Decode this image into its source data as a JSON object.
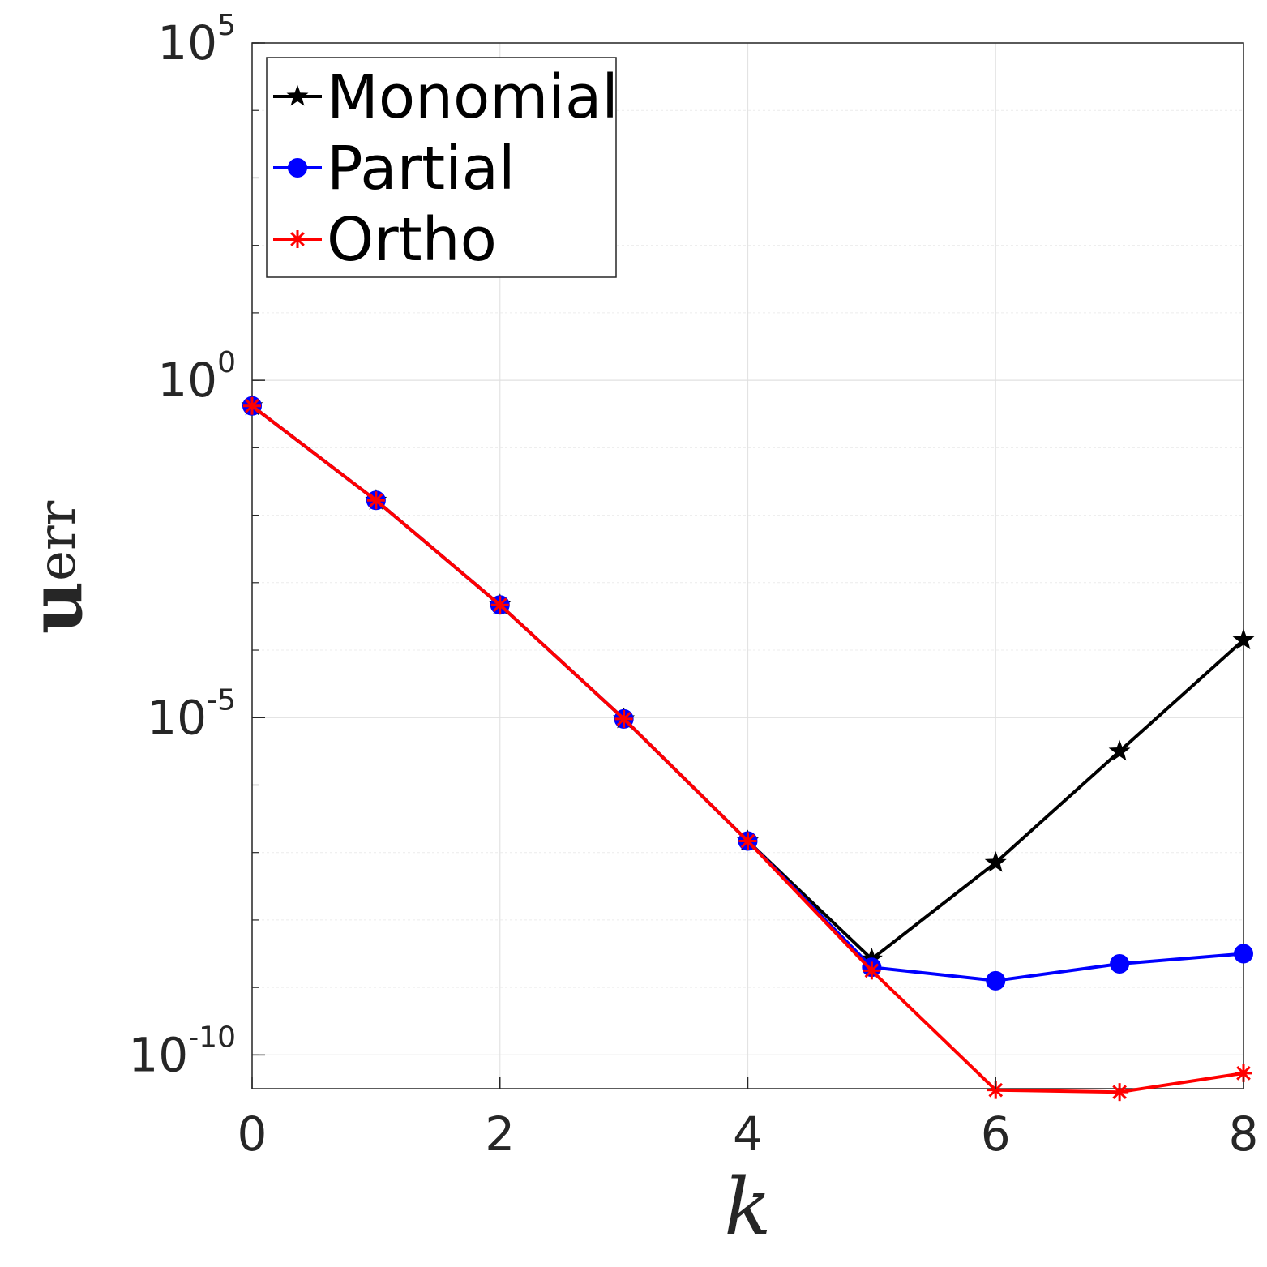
{
  "chart_data": {
    "type": "line",
    "xlabel": "k",
    "ylabel": {
      "main": "u",
      "sub": "err"
    },
    "xlim": [
      0,
      8
    ],
    "ylim_exponent": [
      -10.5,
      5
    ],
    "yscale": "log",
    "grid": true,
    "legend_position": "top-left",
    "x_ticks": [
      "0",
      "2",
      "4",
      "6",
      "8"
    ],
    "y_ticks": [
      {
        "exp": 5,
        "base": "10",
        "sup": "5"
      },
      {
        "exp": 0,
        "base": "10",
        "sup": "0"
      },
      {
        "exp": -5,
        "base": "10",
        "sup": "-5"
      },
      {
        "exp": -10,
        "base": "10",
        "sup": "-10"
      }
    ],
    "x": [
      0,
      1,
      2,
      3,
      4,
      5,
      6,
      7,
      8
    ],
    "series": [
      {
        "name": "Monomial",
        "color": "#000000",
        "marker": "star",
        "log10_y": [
          -0.38,
          -1.78,
          -3.33,
          -5.02,
          -6.83,
          -8.58,
          -7.15,
          -5.5,
          -3.85
        ]
      },
      {
        "name": "Partial",
        "color": "#0000ff",
        "marker": "circle",
        "log10_y": [
          -0.38,
          -1.78,
          -3.33,
          -5.02,
          -6.83,
          -8.7,
          -8.9,
          -8.65,
          -8.5
        ]
      },
      {
        "name": "Ortho",
        "color": "#ff0000",
        "marker": "asterisk",
        "log10_y": [
          -0.38,
          -1.78,
          -3.33,
          -5.02,
          -6.83,
          -8.75,
          -10.52,
          -10.55,
          -10.27
        ]
      }
    ]
  }
}
